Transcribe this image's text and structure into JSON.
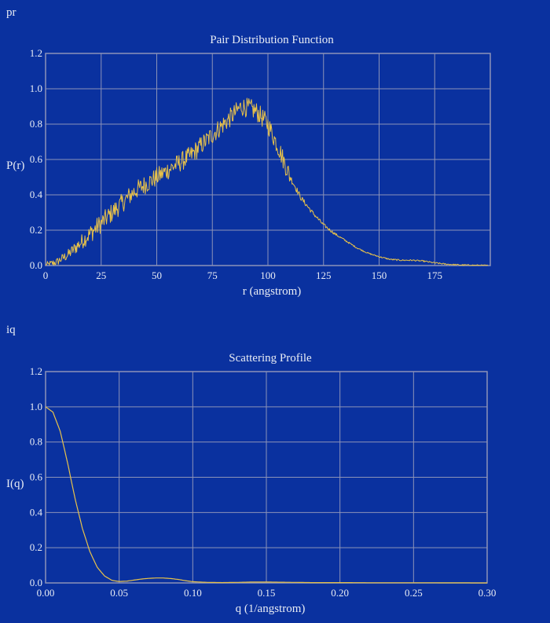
{
  "panels": {
    "pr_label": "pr",
    "iq_label": "iq"
  },
  "colors": {
    "background": "#0a319f",
    "grid": "#8c93b8",
    "frame": "#8c93b8",
    "series": "#e8c24a",
    "text": "#e8ecf4"
  },
  "chart_data": [
    {
      "type": "line",
      "title": "Pair Distribution Function",
      "xlabel": "r (angstrom)",
      "ylabel": "P(r)",
      "xlim": [
        0,
        200
      ],
      "ylim": [
        0,
        1.2
      ],
      "xticks": [
        0,
        25,
        50,
        75,
        100,
        125,
        150,
        175
      ],
      "yticks": [
        0.0,
        0.2,
        0.4,
        0.6,
        0.8,
        1.0,
        1.2
      ],
      "xtick_labels": [
        "0",
        "25",
        "50",
        "75",
        "100",
        "125",
        "150",
        "175"
      ],
      "ytick_labels": [
        "0.0",
        "0.2",
        "0.4",
        "0.6",
        "0.8",
        "1.0",
        "1.2"
      ],
      "grid": true,
      "noisy": true,
      "series": [
        {
          "x": [
            0,
            5,
            10,
            15,
            20,
            25,
            30,
            35,
            40,
            45,
            50,
            55,
            60,
            65,
            70,
            75,
            80,
            85,
            88,
            92,
            95,
            100,
            105,
            110,
            115,
            120,
            125,
            130,
            135,
            140,
            145,
            150,
            155,
            160,
            165,
            170,
            175,
            180,
            185,
            190,
            195,
            199
          ],
          "y": [
            0.0,
            0.02,
            0.06,
            0.12,
            0.18,
            0.24,
            0.3,
            0.36,
            0.42,
            0.46,
            0.5,
            0.54,
            0.58,
            0.62,
            0.68,
            0.74,
            0.8,
            0.86,
            0.9,
            0.89,
            0.87,
            0.8,
            0.66,
            0.5,
            0.38,
            0.3,
            0.23,
            0.18,
            0.14,
            0.1,
            0.07,
            0.05,
            0.035,
            0.03,
            0.03,
            0.025,
            0.015,
            0.008,
            0.004,
            0.002,
            0.001,
            0.0
          ]
        }
      ]
    },
    {
      "type": "line",
      "title": "Scattering Profile",
      "xlabel": "q (1/angstrom)",
      "ylabel": "I(q)",
      "xlim": [
        0,
        0.3
      ],
      "ylim": [
        0,
        1.2
      ],
      "xticks": [
        0.0,
        0.05,
        0.1,
        0.15,
        0.2,
        0.25,
        0.3
      ],
      "yticks": [
        0.0,
        0.2,
        0.4,
        0.6,
        0.8,
        1.0,
        1.2
      ],
      "xtick_labels": [
        "0.00",
        "0.05",
        "0.10",
        "0.15",
        "0.20",
        "0.25",
        "0.30"
      ],
      "ytick_labels": [
        "0.0",
        "0.2",
        "0.4",
        "0.6",
        "0.8",
        "1.0",
        "1.2"
      ],
      "grid": true,
      "noisy": false,
      "series": [
        {
          "x": [
            0.0,
            0.005,
            0.01,
            0.015,
            0.02,
            0.025,
            0.03,
            0.035,
            0.04,
            0.045,
            0.05,
            0.055,
            0.06,
            0.065,
            0.07,
            0.075,
            0.08,
            0.085,
            0.09,
            0.095,
            0.1,
            0.11,
            0.12,
            0.13,
            0.14,
            0.15,
            0.16,
            0.17,
            0.18,
            0.2,
            0.22,
            0.25,
            0.3
          ],
          "y": [
            1.0,
            0.97,
            0.86,
            0.68,
            0.48,
            0.31,
            0.18,
            0.09,
            0.04,
            0.015,
            0.008,
            0.01,
            0.016,
            0.022,
            0.026,
            0.028,
            0.028,
            0.025,
            0.02,
            0.013,
            0.007,
            0.003,
            0.002,
            0.003,
            0.005,
            0.005,
            0.004,
            0.003,
            0.002,
            0.002,
            0.001,
            0.001,
            0.0
          ]
        }
      ]
    }
  ]
}
